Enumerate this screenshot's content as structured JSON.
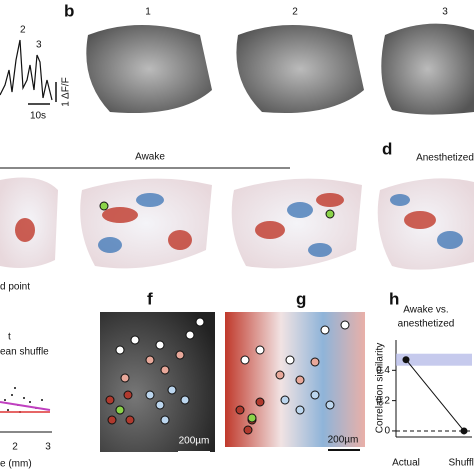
{
  "panel_a": {
    "peak_labels": [
      "2",
      "3"
    ],
    "scale_y": "1 ΔF/F",
    "scale_x": "10s"
  },
  "panel_b": {
    "letter": "b",
    "frame_labels": [
      "1",
      "2",
      "3"
    ]
  },
  "panel_c": {
    "group_label": "Awake",
    "legend_fragment": "d point"
  },
  "panel_d": {
    "letter": "d",
    "group_label": "Anesthetized"
  },
  "panel_e": {
    "legend_fragments": [
      "t",
      "ean shuffle"
    ],
    "x_ticks": [
      "2",
      "3"
    ],
    "x_label_fragment": "e (mm)"
  },
  "panel_f": {
    "letter": "f",
    "scale_bar": "200µm"
  },
  "panel_g": {
    "letter": "g",
    "scale_bar": "200µm"
  },
  "panel_h": {
    "letter": "h",
    "title_lines": [
      "Awake vs.",
      "anesthetized"
    ],
    "y_label": "Correlation similarity",
    "categories": [
      "Actual",
      "Shuffle"
    ],
    "values": [
      0.47,
      0
    ],
    "ylim": [
      -0.04,
      0.6
    ],
    "yticks": [
      0,
      0.2,
      0.4
    ]
  }
}
